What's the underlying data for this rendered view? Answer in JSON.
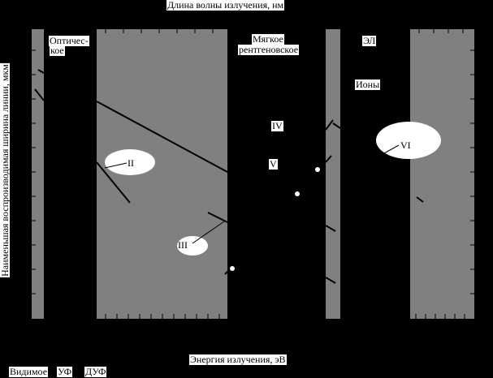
{
  "chart_data": {
    "type": "scatter",
    "top_axis_label": "Длина волны излучения, нм",
    "xlabel": "Энергия излучения, эВ",
    "ylabel": "Наименьшая воспроизводимая ширина линии, мкм",
    "band_labels": [
      "Видимое",
      "УФ",
      "ДУФ"
    ],
    "regions": [
      {
        "name": "optical",
        "label_line1": "Оптичес-",
        "label_line2": "кое",
        "fill": "#808080"
      },
      {
        "name": "soft-xray",
        "label_line1": "Мягкое",
        "label_line2": "рентгеновское",
        "fill": "#000000"
      },
      {
        "name": "el",
        "label": "ЭЛ",
        "fill": "#808080"
      },
      {
        "name": "ions",
        "label": "Ионы",
        "fill": "#000000"
      }
    ],
    "annotations": [
      "II",
      "III",
      "IV",
      "V",
      "VI"
    ],
    "colors": {
      "background": "#000000",
      "band": "#808080",
      "ellipse": "#ffffff",
      "text_bg": "#ffffff"
    }
  }
}
